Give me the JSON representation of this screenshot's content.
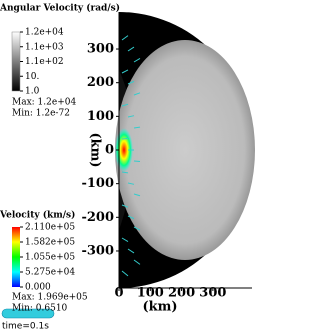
{
  "chart_data": {
    "type": "field",
    "xlabel": "(km)",
    "ylabel": "(km)",
    "xlim": [
      0,
      425
    ],
    "xticks": [
      0,
      100,
      200,
      300
    ],
    "ylim": [
      -410,
      410
    ],
    "yticks": [
      -300,
      -200,
      -100,
      0,
      100,
      200,
      300
    ],
    "legends": [
      {
        "title": "Angular Velocity (rad/s)",
        "labels": [
          "1.2e+04",
          "1.1e+03",
          "1.1e+02",
          "10.",
          "1.0"
        ],
        "max": "Max: 1.2e+04",
        "min": "Min: 1.2e-72"
      },
      {
        "title": "Velocity (km/s)",
        "labels": [
          "2.110e+05",
          "1.582e+05",
          "1.055e+05",
          "5.275e+04",
          "0.000"
        ],
        "max": "Max: 1.969e+05",
        "min": "Min: 0.6510"
      }
    ],
    "time": "time=0.1s"
  }
}
